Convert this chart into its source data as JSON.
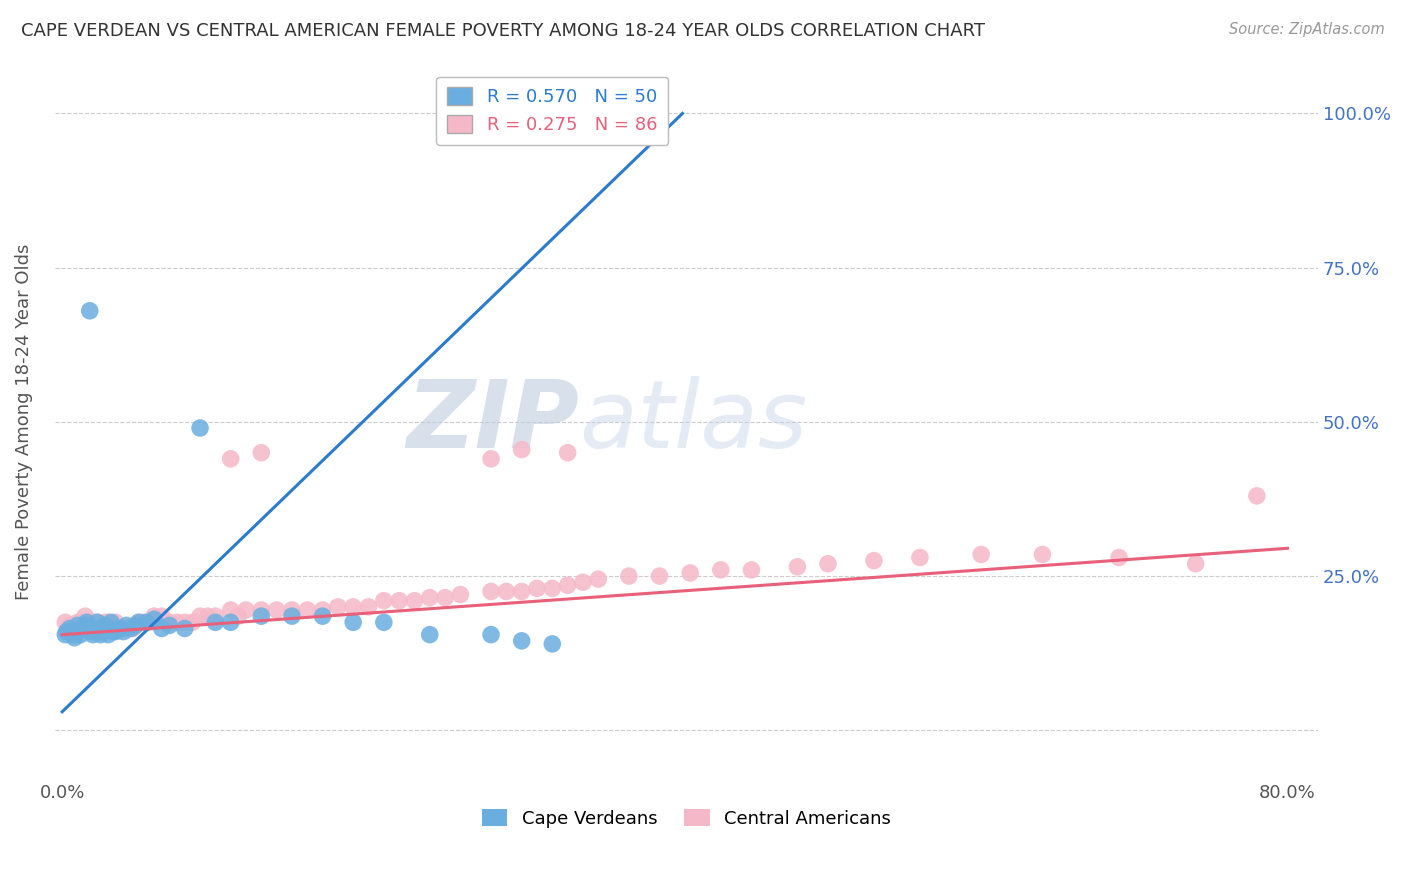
{
  "title": "CAPE VERDEAN VS CENTRAL AMERICAN FEMALE POVERTY AMONG 18-24 YEAR OLDS CORRELATION CHART",
  "source": "Source: ZipAtlas.com",
  "ylabel": "Female Poverty Among 18-24 Year Olds",
  "xlim": [
    -0.005,
    0.82
  ],
  "ylim": [
    -0.08,
    1.08
  ],
  "xtick_positions": [
    0.0,
    0.1,
    0.2,
    0.3,
    0.4,
    0.5,
    0.6,
    0.7,
    0.8
  ],
  "xticklabels": [
    "0.0%",
    "",
    "",
    "",
    "",
    "",
    "",
    "",
    "80.0%"
  ],
  "ytick_positions": [
    0.0,
    0.25,
    0.5,
    0.75,
    1.0
  ],
  "yticklabels_right": [
    "",
    "25.0%",
    "50.0%",
    "75.0%",
    "100.0%"
  ],
  "blue_color": "#6aaee0",
  "pink_color": "#f5b8c8",
  "blue_line_color": "#2b7bce",
  "pink_line_color": "#e8607a",
  "legend_label_blue": "R = 0.570   N = 50",
  "legend_label_pink": "R = 0.275   N = 86",
  "legend_blue_text_color": "#2b7bce",
  "legend_pink_text_color": "#e8607a",
  "watermark_text": "ZIPatlas",
  "watermark_color": "#c8d8ec",
  "background_color": "#ffffff",
  "grid_color": "#cccccc",
  "blue_line_x": [
    0.0,
    0.405
  ],
  "blue_line_y": [
    0.03,
    1.0
  ],
  "pink_line_x": [
    0.0,
    0.8
  ],
  "pink_line_y": [
    0.155,
    0.295
  ],
  "blue_scatter_x": [
    0.002,
    0.003,
    0.005,
    0.007,
    0.008,
    0.01,
    0.01,
    0.012,
    0.013,
    0.015,
    0.015,
    0.016,
    0.018,
    0.018,
    0.02,
    0.02,
    0.022,
    0.023,
    0.025,
    0.025,
    0.027,
    0.028,
    0.03,
    0.03,
    0.032,
    0.033,
    0.035,
    0.038,
    0.04,
    0.042,
    0.045,
    0.048,
    0.05,
    0.055,
    0.06,
    0.065,
    0.07,
    0.08,
    0.09,
    0.1,
    0.11,
    0.13,
    0.15,
    0.17,
    0.19,
    0.21,
    0.24,
    0.28,
    0.3,
    0.32
  ],
  "blue_scatter_y": [
    0.155,
    0.16,
    0.165,
    0.155,
    0.15,
    0.16,
    0.17,
    0.155,
    0.165,
    0.165,
    0.17,
    0.175,
    0.16,
    0.68,
    0.165,
    0.155,
    0.16,
    0.175,
    0.155,
    0.165,
    0.16,
    0.17,
    0.155,
    0.165,
    0.175,
    0.16,
    0.16,
    0.165,
    0.16,
    0.17,
    0.165,
    0.17,
    0.175,
    0.175,
    0.18,
    0.165,
    0.17,
    0.165,
    0.49,
    0.175,
    0.175,
    0.185,
    0.185,
    0.185,
    0.175,
    0.175,
    0.155,
    0.155,
    0.145,
    0.14
  ],
  "pink_scatter_x": [
    0.002,
    0.004,
    0.005,
    0.006,
    0.008,
    0.009,
    0.01,
    0.011,
    0.012,
    0.013,
    0.015,
    0.015,
    0.016,
    0.017,
    0.018,
    0.019,
    0.02,
    0.02,
    0.022,
    0.023,
    0.025,
    0.026,
    0.028,
    0.03,
    0.032,
    0.035,
    0.038,
    0.04,
    0.043,
    0.046,
    0.05,
    0.053,
    0.057,
    0.06,
    0.065,
    0.07,
    0.075,
    0.08,
    0.085,
    0.09,
    0.095,
    0.1,
    0.11,
    0.115,
    0.12,
    0.13,
    0.14,
    0.15,
    0.16,
    0.17,
    0.18,
    0.19,
    0.2,
    0.21,
    0.22,
    0.23,
    0.24,
    0.25,
    0.26,
    0.28,
    0.29,
    0.3,
    0.31,
    0.32,
    0.33,
    0.34,
    0.35,
    0.37,
    0.39,
    0.41,
    0.43,
    0.45,
    0.48,
    0.5,
    0.53,
    0.56,
    0.6,
    0.64,
    0.69,
    0.74,
    0.11,
    0.13,
    0.28,
    0.3,
    0.33,
    0.78
  ],
  "pink_scatter_y": [
    0.175,
    0.165,
    0.17,
    0.165,
    0.17,
    0.155,
    0.175,
    0.165,
    0.175,
    0.165,
    0.175,
    0.185,
    0.165,
    0.175,
    0.165,
    0.175,
    0.16,
    0.175,
    0.165,
    0.175,
    0.165,
    0.165,
    0.175,
    0.175,
    0.165,
    0.175,
    0.165,
    0.165,
    0.165,
    0.165,
    0.175,
    0.175,
    0.175,
    0.185,
    0.185,
    0.175,
    0.175,
    0.175,
    0.175,
    0.185,
    0.185,
    0.185,
    0.195,
    0.185,
    0.195,
    0.195,
    0.195,
    0.195,
    0.195,
    0.195,
    0.2,
    0.2,
    0.2,
    0.21,
    0.21,
    0.21,
    0.215,
    0.215,
    0.22,
    0.225,
    0.225,
    0.225,
    0.23,
    0.23,
    0.235,
    0.24,
    0.245,
    0.25,
    0.25,
    0.255,
    0.26,
    0.26,
    0.265,
    0.27,
    0.275,
    0.28,
    0.285,
    0.285,
    0.28,
    0.27,
    0.44,
    0.45,
    0.44,
    0.455,
    0.45,
    0.38
  ]
}
